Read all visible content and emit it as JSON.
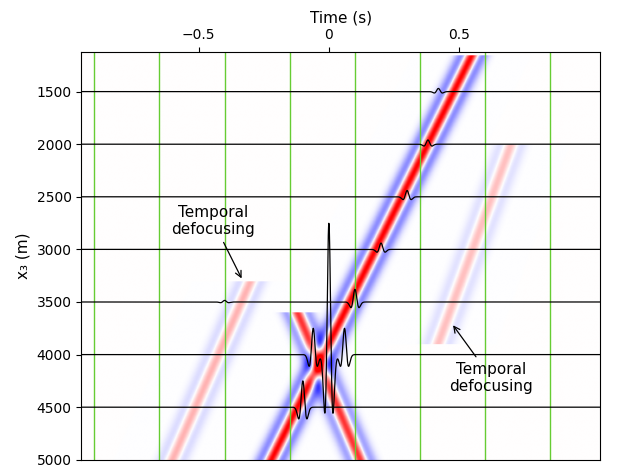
{
  "chart_data": {
    "type": "wavefield",
    "xlabel": "Time (s)",
    "ylabel": "x₃ (m)",
    "xlim": [
      -0.95,
      1.04
    ],
    "ylim": [
      5000,
      1125
    ],
    "xticks": [
      {
        "value": -0.5,
        "label": "−0.5"
      },
      0,
      0.5
    ],
    "yticks": [
      1500,
      2000,
      2500,
      3000,
      3500,
      4000,
      4500,
      5000
    ],
    "grid": false,
    "events": [
      {
        "t0": -0.22,
        "z0": 5000,
        "t1": 0.55,
        "z1": 1150,
        "amplitude": 1.0
      },
      {
        "t0": 0.12,
        "z0": 5000,
        "t1": -0.12,
        "z1": 3600,
        "amplitude": 0.8
      },
      {
        "t0": -0.6,
        "z0": 5000,
        "t1": -0.3,
        "z1": 3300,
        "amplitude": 0.3
      },
      {
        "t0": 0.42,
        "z0": 3900,
        "t1": 0.7,
        "z1": 2000,
        "amplitude": 0.25
      }
    ],
    "time_lines": {
      "times": [
        -0.9,
        -0.65,
        -0.4,
        -0.15,
        0.1,
        0.35,
        0.6,
        0.85
      ],
      "color": "#66cc33"
    },
    "traces": {
      "color": "#000000",
      "series": [
        {
          "depth": 1500,
          "times": [
            0.42
          ],
          "amplitudes": [
            30
          ]
        },
        {
          "depth": 2000,
          "times": [
            0.38
          ],
          "amplitudes": [
            40
          ]
        },
        {
          "depth": 2500,
          "times": [
            0.3
          ],
          "amplitudes": [
            60
          ]
        },
        {
          "depth": 3000,
          "times": [
            0.2
          ],
          "amplitudes": [
            60
          ]
        },
        {
          "depth": 3500,
          "times": [
            0.1,
            -0.4
          ],
          "amplitudes": [
            120,
            15
          ]
        },
        {
          "depth": 4000,
          "times": [
            0.0,
            -0.06,
            0.06
          ],
          "amplitudes": [
            1250,
            250,
            250
          ]
        },
        {
          "depth": 4500,
          "times": [
            -0.1
          ],
          "amplitudes": [
            250
          ]
        }
      ]
    },
    "annotations": [
      {
        "text": "Temporal\ndefocusing",
        "point": [
          -0.33,
          3300
        ]
      },
      {
        "text": "Temporal\ndefocusing",
        "point": [
          0.47,
          3700
        ]
      }
    ]
  }
}
